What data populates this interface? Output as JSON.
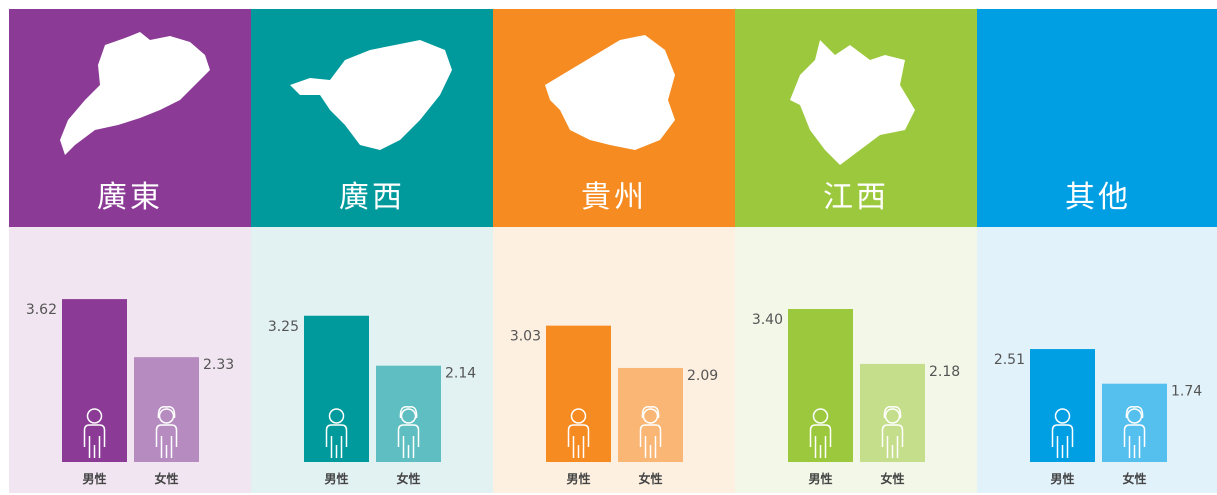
{
  "chart_data": [
    {
      "type": "bar",
      "title": "廣東",
      "categories": [
        "男性",
        "女性"
      ],
      "values": [
        3.62,
        2.33
      ],
      "value_labels": [
        "3.62",
        "2.33"
      ],
      "colors": [
        "#8b3a96",
        "#b68bc0"
      ],
      "header_color": "#8b3a96",
      "panel_color": "#f1e5f1",
      "ylim": [
        0,
        4
      ]
    },
    {
      "type": "bar",
      "title": "廣西",
      "categories": [
        "男性",
        "女性"
      ],
      "values": [
        3.25,
        2.14
      ],
      "value_labels": [
        "3.25",
        "2.14"
      ],
      "colors": [
        "#009a9c",
        "#5fbec1"
      ],
      "header_color": "#009a9c",
      "panel_color": "#e2f1f2",
      "ylim": [
        0,
        4
      ]
    },
    {
      "type": "bar",
      "title": "貴州",
      "categories": [
        "男性",
        "女性"
      ],
      "values": [
        3.03,
        2.09
      ],
      "value_labels": [
        "3.03",
        "2.09"
      ],
      "colors": [
        "#f58b21",
        "#f9b674"
      ],
      "header_color": "#f58b21",
      "panel_color": "#fdf0e1",
      "ylim": [
        0,
        4
      ]
    },
    {
      "type": "bar",
      "title": "江西",
      "categories": [
        "男性",
        "女性"
      ],
      "values": [
        3.4,
        2.18
      ],
      "value_labels": [
        "3.40",
        "2.18"
      ],
      "colors": [
        "#9bc83c",
        "#c4de8b"
      ],
      "header_color": "#9bc83c",
      "panel_color": "#f3f7e8",
      "ylim": [
        0,
        4
      ]
    },
    {
      "type": "bar",
      "title": "其他",
      "categories": [
        "男性",
        "女性"
      ],
      "values": [
        2.51,
        1.74
      ],
      "value_labels": [
        "2.51",
        "1.74"
      ],
      "colors": [
        "#009fe3",
        "#55bfee"
      ],
      "header_color": "#009fe3",
      "panel_color": "#e2f2fb",
      "ylim": [
        0,
        4
      ]
    }
  ]
}
